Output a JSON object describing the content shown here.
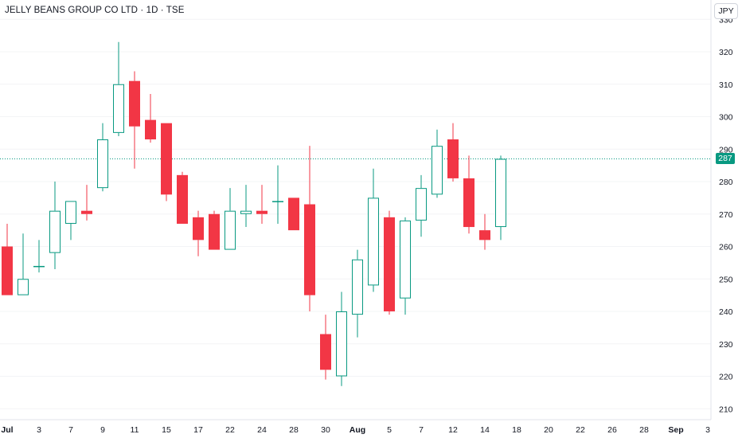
{
  "title": "JELLY BEANS GROUP CO LTD · 1D · TSE",
  "currency": "JPY",
  "last_price": "287",
  "colors": {
    "up": "#089981",
    "down": "#F23645",
    "axis_text": "#131722",
    "price_line": "#089981"
  },
  "chart_data": {
    "type": "candlestick",
    "title": "JELLY BEANS GROUP CO LTD · 1D · TSE",
    "y_axis": {
      "side": "right",
      "range": [
        210,
        330
      ],
      "ticks": [
        210,
        220,
        230,
        240,
        250,
        260,
        270,
        280,
        290,
        300,
        310,
        320,
        330
      ]
    },
    "x_ticks": [
      {
        "label": "Jul",
        "index": 0
      },
      {
        "label": "3",
        "index": 2
      },
      {
        "label": "7",
        "index": 4
      },
      {
        "label": "9",
        "index": 6
      },
      {
        "label": "11",
        "index": 8
      },
      {
        "label": "15",
        "index": 10
      },
      {
        "label": "17",
        "index": 12
      },
      {
        "label": "22",
        "index": 14
      },
      {
        "label": "24",
        "index": 16
      },
      {
        "label": "28",
        "index": 18
      },
      {
        "label": "30",
        "index": 20
      },
      {
        "label": "Aug",
        "index": 22
      },
      {
        "label": "5",
        "index": 24
      },
      {
        "label": "7",
        "index": 26
      },
      {
        "label": "12",
        "index": 28
      },
      {
        "label": "14",
        "index": 30
      },
      {
        "label": "18",
        "index": 32
      },
      {
        "label": "20",
        "index": 34
      },
      {
        "label": "22",
        "index": 36
      },
      {
        "label": "26",
        "index": 38
      },
      {
        "label": "28",
        "index": 40
      },
      {
        "label": "Sep",
        "index": 42
      },
      {
        "label": "3",
        "index": 44
      }
    ],
    "candles": [
      {
        "o": 260,
        "h": 267,
        "l": 245,
        "c": 245
      },
      {
        "o": 245,
        "h": 264,
        "l": 245,
        "c": 250
      },
      {
        "o": 254,
        "h": 262,
        "l": 252,
        "c": 254
      },
      {
        "o": 258,
        "h": 280,
        "l": 253,
        "c": 271
      },
      {
        "o": 267,
        "h": 274,
        "l": 262,
        "c": 274
      },
      {
        "o": 271,
        "h": 279,
        "l": 268,
        "c": 270
      },
      {
        "o": 278,
        "h": 298,
        "l": 277,
        "c": 293
      },
      {
        "o": 295,
        "h": 323,
        "l": 294,
        "c": 310
      },
      {
        "o": 311,
        "h": 314,
        "l": 284,
        "c": 297
      },
      {
        "o": 299,
        "h": 307,
        "l": 292,
        "c": 293
      },
      {
        "o": 298,
        "h": 298,
        "l": 274,
        "c": 276
      },
      {
        "o": 282,
        "h": 283,
        "l": 267,
        "c": 267
      },
      {
        "o": 269,
        "h": 271,
        "l": 257,
        "c": 262
      },
      {
        "o": 270,
        "h": 271,
        "l": 259,
        "c": 259
      },
      {
        "o": 259,
        "h": 278,
        "l": 259,
        "c": 271
      },
      {
        "o": 270,
        "h": 279,
        "l": 266,
        "c": 271
      },
      {
        "o": 271,
        "h": 279,
        "l": 267,
        "c": 270
      },
      {
        "o": 274,
        "h": 285,
        "l": 267,
        "c": 274
      },
      {
        "o": 275,
        "h": 275,
        "l": 265,
        "c": 265
      },
      {
        "o": 273,
        "h": 291,
        "l": 240,
        "c": 245
      },
      {
        "o": 233,
        "h": 239,
        "l": 219,
        "c": 222
      },
      {
        "o": 220,
        "h": 246,
        "l": 217,
        "c": 240
      },
      {
        "o": 239,
        "h": 259,
        "l": 232,
        "c": 256
      },
      {
        "o": 248,
        "h": 284,
        "l": 246,
        "c": 275
      },
      {
        "o": 269,
        "h": 271,
        "l": 239,
        "c": 240
      },
      {
        "o": 244,
        "h": 269,
        "l": 239,
        "c": 268
      },
      {
        "o": 268,
        "h": 282,
        "l": 263,
        "c": 278
      },
      {
        "o": 276,
        "h": 296,
        "l": 275,
        "c": 291
      },
      {
        "o": 293,
        "h": 298,
        "l": 280,
        "c": 281
      },
      {
        "o": 281,
        "h": 288,
        "l": 264,
        "c": 266
      },
      {
        "o": 265,
        "h": 270,
        "l": 259,
        "c": 262
      },
      {
        "o": 266,
        "h": 288,
        "l": 262,
        "c": 287
      }
    ]
  }
}
